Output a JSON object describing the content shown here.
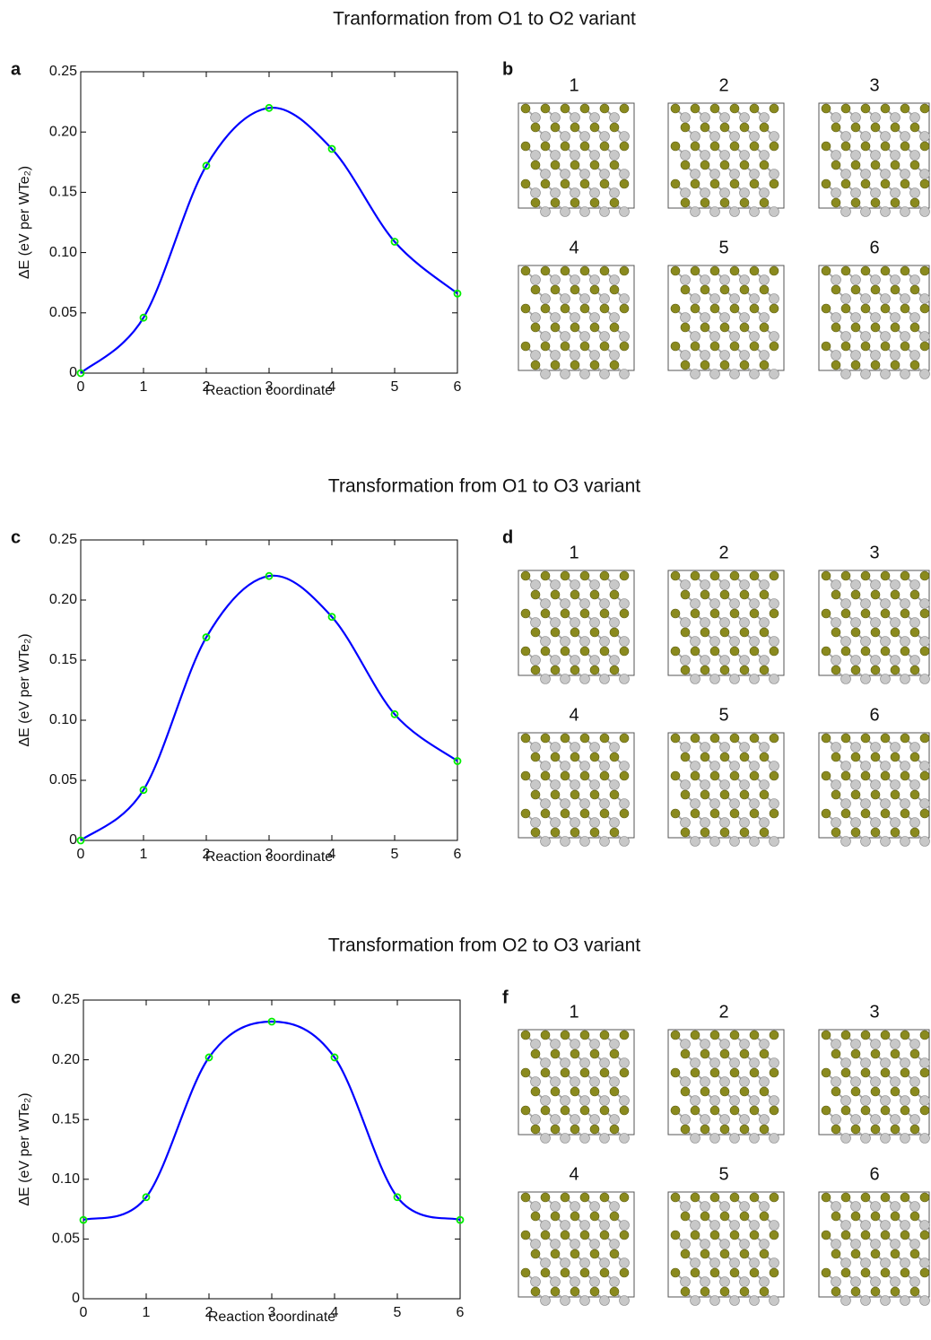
{
  "chart_data": [
    {
      "type": "line",
      "title": "Tranformation from O1 to O2 variant",
      "panel_label": "a",
      "xlabel": "Reaction coordinate",
      "ylabel": "ΔE (eV per WTe₂)",
      "x": [
        0,
        1,
        2,
        3,
        4,
        5,
        6
      ],
      "values": [
        0,
        0.046,
        0.172,
        0.22,
        0.186,
        0.109,
        0.066
      ],
      "color": "#0000ff",
      "marker_color": "#00ee00",
      "xlim": [
        0,
        6
      ],
      "ylim": [
        0,
        0.25
      ],
      "xticks": [
        0,
        1,
        2,
        3,
        4,
        5,
        6
      ],
      "yticks": [
        0,
        0.05,
        {
          "value": 0.1,
          "label": "0.10"
        },
        0.15,
        {
          "value": 0.2,
          "label": "0.20"
        },
        0.25
      ]
    },
    {
      "type": "line",
      "title": "Transformation from O1 to O3 variant",
      "panel_label": "c",
      "xlabel": "Reaction coordinate",
      "ylabel": "ΔE (eV per WTe₂)",
      "x": [
        0,
        1,
        2,
        3,
        4,
        5,
        6
      ],
      "values": [
        0,
        0.042,
        0.169,
        0.22,
        0.186,
        0.105,
        0.066
      ],
      "color": "#0000ff",
      "marker_color": "#00ee00",
      "xlim": [
        0,
        6
      ],
      "ylim": [
        0,
        0.25
      ],
      "xticks": [
        0,
        1,
        2,
        3,
        4,
        5,
        6
      ],
      "yticks": [
        0,
        0.05,
        {
          "value": 0.1,
          "label": "0.10"
        },
        0.15,
        {
          "value": 0.2,
          "label": "0.20"
        },
        0.25
      ]
    },
    {
      "type": "line",
      "title": "Transformation from O2 to O3 variant",
      "panel_label": "e",
      "xlabel": "Reaction coordinate",
      "ylabel": "ΔE (eV per WTe₂)",
      "x": [
        0,
        1,
        2,
        3,
        4,
        5,
        6
      ],
      "values": [
        0.066,
        0.085,
        0.202,
        0.232,
        0.202,
        0.085,
        0.066
      ],
      "color": "#0000ff",
      "marker_color": "#00ee00",
      "xlim": [
        0,
        6
      ],
      "ylim": [
        0,
        0.25
      ],
      "xticks": [
        0,
        1,
        2,
        3,
        4,
        5,
        6
      ],
      "yticks": [
        0,
        0.05,
        {
          "value": 0.1,
          "label": "0.10"
        },
        0.15,
        {
          "value": 0.2,
          "label": "0.20"
        },
        0.25
      ]
    }
  ],
  "structures": [
    {
      "label": "b",
      "frames": [
        "1",
        "2",
        "3",
        "4",
        "5",
        "6"
      ]
    },
    {
      "label": "d",
      "frames": [
        "1",
        "2",
        "3",
        "4",
        "5",
        "6"
      ]
    },
    {
      "label": "f",
      "frames": [
        "1",
        "2",
        "3",
        "4",
        "5",
        "6"
      ]
    }
  ]
}
